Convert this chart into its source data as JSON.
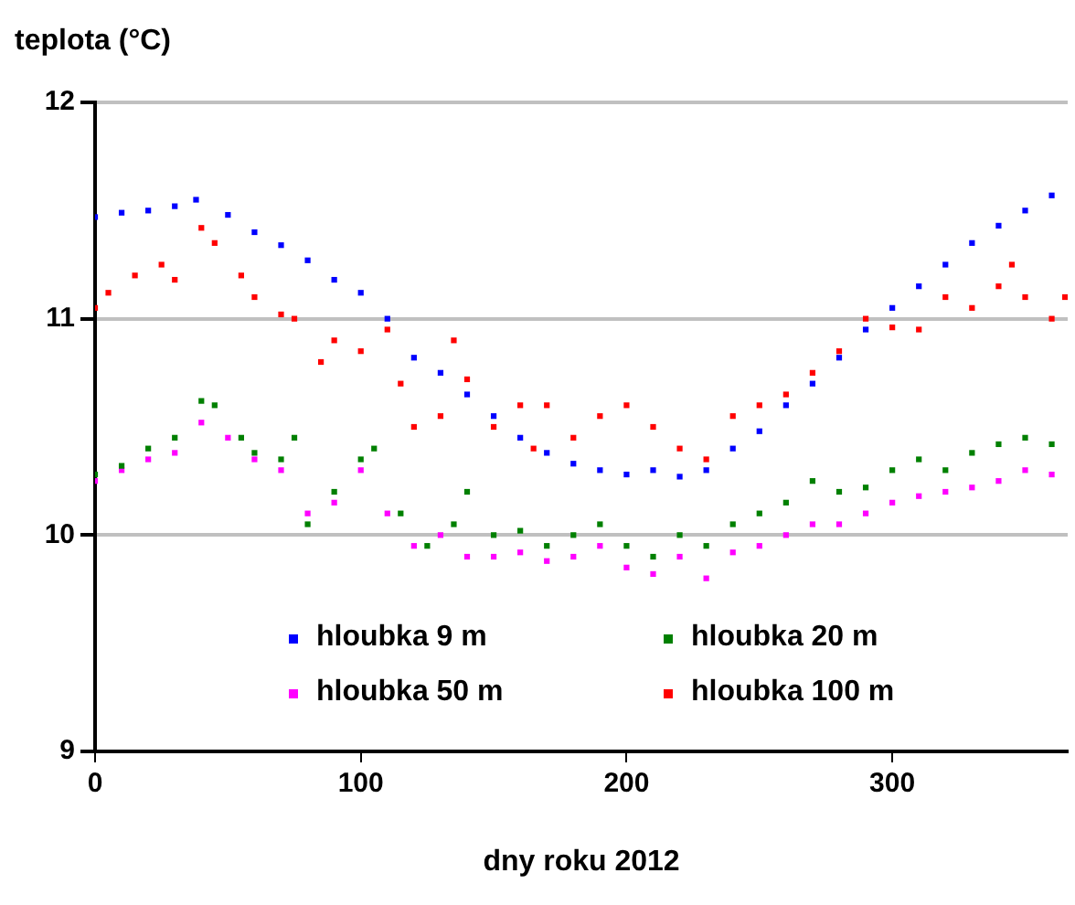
{
  "chart_data": {
    "type": "scatter",
    "ylabel": "teplota (°C)",
    "xlabel": "dny roku 2012",
    "xlim": [
      0,
      366
    ],
    "xticks": [
      0,
      100,
      200,
      300
    ],
    "ylim": [
      9,
      12
    ],
    "yticks": [
      9,
      10,
      11,
      12
    ],
    "grid": "y",
    "legend": "bottom",
    "marker": "square",
    "series": [
      {
        "name": "hloubka 9 m",
        "color": "#0000ff",
        "x": [
          0,
          10,
          20,
          30,
          38,
          50,
          60,
          70,
          80,
          90,
          100,
          110,
          120,
          130,
          140,
          150,
          160,
          170,
          180,
          190,
          200,
          210,
          220,
          230,
          240,
          250,
          260,
          270,
          280,
          290,
          300,
          310,
          320,
          330,
          340,
          350,
          360
        ],
        "values": [
          11.47,
          11.49,
          11.5,
          11.52,
          11.55,
          11.48,
          11.4,
          11.34,
          11.27,
          11.18,
          11.12,
          11.0,
          10.82,
          10.75,
          10.65,
          10.55,
          10.45,
          10.38,
          10.33,
          10.3,
          10.28,
          10.3,
          10.27,
          10.3,
          10.4,
          10.48,
          10.6,
          10.7,
          10.82,
          10.95,
          11.05,
          11.15,
          11.25,
          11.35,
          11.43,
          11.5,
          11.57
        ]
      },
      {
        "name": "hloubka 20 m",
        "color": "#008000",
        "x": [
          0,
          10,
          20,
          30,
          40,
          45,
          55,
          60,
          70,
          75,
          80,
          90,
          100,
          105,
          115,
          125,
          135,
          140,
          150,
          160,
          170,
          180,
          190,
          200,
          210,
          220,
          230,
          240,
          250,
          260,
          270,
          280,
          290,
          300,
          310,
          320,
          330,
          340,
          350,
          360
        ],
        "values": [
          10.28,
          10.32,
          10.4,
          10.45,
          10.62,
          10.6,
          10.45,
          10.38,
          10.35,
          10.45,
          10.05,
          10.2,
          10.35,
          10.4,
          10.1,
          9.95,
          10.05,
          10.2,
          10.0,
          10.02,
          9.95,
          10.0,
          10.05,
          9.95,
          9.9,
          10.0,
          9.95,
          10.05,
          10.1,
          10.15,
          10.25,
          10.2,
          10.22,
          10.3,
          10.35,
          10.3,
          10.38,
          10.42,
          10.45,
          10.42
        ]
      },
      {
        "name": "hloubka 50 m",
        "color": "#ff00ff",
        "x": [
          0,
          10,
          20,
          30,
          40,
          50,
          60,
          70,
          80,
          90,
          100,
          110,
          120,
          130,
          140,
          150,
          160,
          170,
          180,
          190,
          200,
          210,
          220,
          230,
          240,
          250,
          260,
          270,
          280,
          290,
          300,
          310,
          320,
          330,
          340,
          350,
          360
        ],
        "values": [
          10.25,
          10.3,
          10.35,
          10.38,
          10.52,
          10.45,
          10.35,
          10.3,
          10.1,
          10.15,
          10.3,
          10.1,
          9.95,
          10.0,
          9.9,
          9.9,
          9.92,
          9.88,
          9.9,
          9.95,
          9.85,
          9.82,
          9.9,
          9.8,
          9.92,
          9.95,
          10.0,
          10.05,
          10.05,
          10.1,
          10.15,
          10.18,
          10.2,
          10.22,
          10.25,
          10.3,
          10.28
        ]
      },
      {
        "name": "hloubka 100 m",
        "color": "#ff0000",
        "x": [
          0,
          5,
          15,
          25,
          30,
          40,
          45,
          55,
          60,
          70,
          75,
          85,
          90,
          100,
          110,
          115,
          120,
          130,
          135,
          140,
          150,
          160,
          165,
          170,
          180,
          190,
          200,
          210,
          220,
          230,
          240,
          250,
          260,
          270,
          280,
          290,
          300,
          310,
          320,
          330,
          340,
          345,
          350,
          360,
          365
        ],
        "values": [
          11.05,
          11.12,
          11.2,
          11.25,
          11.18,
          11.42,
          11.35,
          11.2,
          11.1,
          11.02,
          11.0,
          10.8,
          10.9,
          10.85,
          10.95,
          10.7,
          10.5,
          10.55,
          10.9,
          10.72,
          10.5,
          10.6,
          10.4,
          10.6,
          10.45,
          10.55,
          10.6,
          10.5,
          10.4,
          10.35,
          10.55,
          10.6,
          10.65,
          10.75,
          10.85,
          11.0,
          10.96,
          10.95,
          11.1,
          11.05,
          11.15,
          11.25,
          11.1,
          11.0,
          11.1
        ]
      }
    ]
  }
}
